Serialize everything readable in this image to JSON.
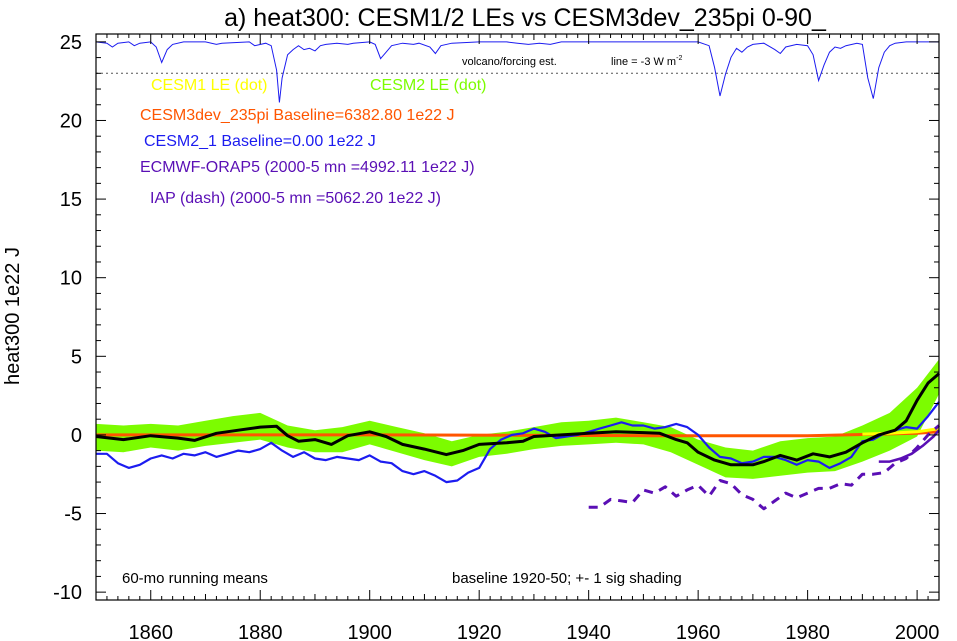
{
  "chart_data": {
    "type": "line",
    "title": "a) heat300: CESM1/2 LEs vs CESM3dev_235pi 0-90_",
    "ylabel": "heat300 1e22 J",
    "xlabel": "",
    "xlim": [
      1850,
      2004
    ],
    "ylim": [
      -10.5,
      25.5
    ],
    "x_ticks": [
      1860,
      1880,
      1900,
      1920,
      1940,
      1960,
      1980,
      2000
    ],
    "y_ticks": [
      -10,
      -5,
      0,
      5,
      10,
      15,
      20,
      25
    ],
    "grid": false,
    "legend_position": "top-left, inside",
    "legend": [
      {
        "text": "CESM1 LE (dot)",
        "color": "#ffff00"
      },
      {
        "text": "CESM2 LE (dot)",
        "color": "#7cfc00"
      },
      {
        "text": "CESM3dev_235pi Baseline=6382.80 1e22 J",
        "color": "#ff5500"
      },
      {
        "text": "CESM2_1 Baseline=0.00 1e22 J",
        "color": "#1c1cf0"
      },
      {
        "text": "ECMWF-ORAP5 (2000-5 mn =4992.11 1e22 J)",
        "color": "#5a0fb5"
      },
      {
        "text": "IAP (dash) (2000-5 mn =5062.20 1e22 J)",
        "color": "#5a0fb5"
      }
    ],
    "volcano_label": "volcano/forcing est.",
    "volcano_line_label": "line = -3 W m",
    "volcano_line_sup": "-2",
    "note_left": "60-mo running means",
    "note_right": "baseline 1920-50; +- 1 sig shading",
    "colors": {
      "cesm1": "#ffff00",
      "shading": "#7cfc00",
      "cesm3dev": "#ff5500",
      "cesm2_1": "#1c1cf0",
      "obs": "#5a0fb5",
      "ensemble_mean": "#000000",
      "volcano": "#1c1cf0"
    },
    "series": [
      {
        "key": "ensemble_mean",
        "values": [
          [
            1850,
            -0.1
          ],
          [
            1855,
            -0.3
          ],
          [
            1860,
            -0.05
          ],
          [
            1865,
            -0.2
          ],
          [
            1868,
            -0.35
          ],
          [
            1872,
            0.1
          ],
          [
            1876,
            0.3
          ],
          [
            1880,
            0.5
          ],
          [
            1883,
            0.55
          ],
          [
            1885,
            -0.05
          ],
          [
            1887,
            -0.4
          ],
          [
            1890,
            -0.3
          ],
          [
            1893,
            -0.6
          ],
          [
            1896,
            -0.05
          ],
          [
            1900,
            0.2
          ],
          [
            1903,
            -0.1
          ],
          [
            1906,
            -0.6
          ],
          [
            1910,
            -0.9
          ],
          [
            1914,
            -1.25
          ],
          [
            1917,
            -1.0
          ],
          [
            1920,
            -0.6
          ],
          [
            1925,
            -0.5
          ],
          [
            1928,
            -0.4
          ],
          [
            1930,
            -0.1
          ],
          [
            1935,
            0.0
          ],
          [
            1940,
            0.1
          ],
          [
            1945,
            0.2
          ],
          [
            1950,
            0.15
          ],
          [
            1953,
            0.1
          ],
          [
            1956,
            -0.3
          ],
          [
            1958,
            -0.5
          ],
          [
            1960,
            -1.1
          ],
          [
            1963,
            -1.6
          ],
          [
            1966,
            -1.9
          ],
          [
            1970,
            -1.9
          ],
          [
            1972,
            -1.7
          ],
          [
            1975,
            -1.3
          ],
          [
            1978,
            -1.6
          ],
          [
            1981,
            -1.2
          ],
          [
            1984,
            -1.4
          ],
          [
            1987,
            -1.1
          ],
          [
            1990,
            -0.5
          ],
          [
            1993,
            0.0
          ],
          [
            1996,
            0.3
          ],
          [
            1998,
            0.9
          ],
          [
            2000,
            2.2
          ],
          [
            2002,
            3.3
          ],
          [
            2004,
            3.9
          ]
        ]
      },
      {
        "key": "cesm2_1",
        "values": [
          [
            1850,
            -1.2
          ],
          [
            1852,
            -1.2
          ],
          [
            1854,
            -1.8
          ],
          [
            1856,
            -2.1
          ],
          [
            1858,
            -1.9
          ],
          [
            1860,
            -1.5
          ],
          [
            1862,
            -1.3
          ],
          [
            1864,
            -1.5
          ],
          [
            1866,
            -1.2
          ],
          [
            1868,
            -1.3
          ],
          [
            1870,
            -1.1
          ],
          [
            1872,
            -1.4
          ],
          [
            1874,
            -1.2
          ],
          [
            1876,
            -1.0
          ],
          [
            1878,
            -1.1
          ],
          [
            1880,
            -0.9
          ],
          [
            1882,
            -0.5
          ],
          [
            1884,
            -1.0
          ],
          [
            1886,
            -1.4
          ],
          [
            1888,
            -1.1
          ],
          [
            1890,
            -1.5
          ],
          [
            1892,
            -1.6
          ],
          [
            1894,
            -1.4
          ],
          [
            1896,
            -1.5
          ],
          [
            1898,
            -1.6
          ],
          [
            1900,
            -1.3
          ],
          [
            1902,
            -1.7
          ],
          [
            1904,
            -1.8
          ],
          [
            1906,
            -2.3
          ],
          [
            1908,
            -2.5
          ],
          [
            1910,
            -2.3
          ],
          [
            1912,
            -2.6
          ],
          [
            1914,
            -3.0
          ],
          [
            1916,
            -2.9
          ],
          [
            1918,
            -2.4
          ],
          [
            1920,
            -2.1
          ],
          [
            1922,
            -0.9
          ],
          [
            1924,
            -0.3
          ],
          [
            1926,
            0.0
          ],
          [
            1928,
            0.1
          ],
          [
            1930,
            0.4
          ],
          [
            1932,
            0.2
          ],
          [
            1934,
            -0.2
          ],
          [
            1936,
            -0.1
          ],
          [
            1938,
            0.0
          ],
          [
            1940,
            0.2
          ],
          [
            1942,
            0.4
          ],
          [
            1944,
            0.6
          ],
          [
            1946,
            0.8
          ],
          [
            1948,
            0.6
          ],
          [
            1950,
            0.6
          ],
          [
            1952,
            0.4
          ],
          [
            1954,
            0.5
          ],
          [
            1956,
            0.7
          ],
          [
            1958,
            0.5
          ],
          [
            1960,
            0.0
          ],
          [
            1962,
            -0.8
          ],
          [
            1964,
            -1.4
          ],
          [
            1966,
            -1.5
          ],
          [
            1968,
            -1.8
          ],
          [
            1970,
            -1.7
          ],
          [
            1972,
            -1.4
          ],
          [
            1974,
            -1.4
          ],
          [
            1976,
            -1.6
          ],
          [
            1978,
            -1.9
          ],
          [
            1980,
            -1.6
          ],
          [
            1982,
            -1.7
          ],
          [
            1984,
            -2.1
          ],
          [
            1986,
            -1.8
          ],
          [
            1988,
            -1.4
          ],
          [
            1990,
            -0.4
          ],
          [
            1992,
            -0.3
          ],
          [
            1994,
            0.1
          ],
          [
            1996,
            0.3
          ],
          [
            1998,
            0.5
          ],
          [
            2000,
            0.4
          ],
          [
            2002,
            1.2
          ],
          [
            2004,
            2.1
          ]
        ]
      },
      {
        "key": "cesm3dev",
        "values": [
          [
            1850,
            0.0
          ],
          [
            1900,
            0.0
          ],
          [
            1950,
            -0.05
          ],
          [
            1980,
            -0.05
          ],
          [
            2000,
            0.1
          ],
          [
            2004,
            0.2
          ]
        ]
      },
      {
        "key": "cesm1",
        "values": [
          [
            1990,
            0.05
          ],
          [
            1995,
            0.1
          ],
          [
            2000,
            0.2
          ],
          [
            2004,
            0.4
          ]
        ]
      },
      {
        "key": "iap",
        "style": "dash",
        "values": [
          [
            1940,
            -4.6
          ],
          [
            1942,
            -4.6
          ],
          [
            1944,
            -4.1
          ],
          [
            1946,
            -4.2
          ],
          [
            1948,
            -4.3
          ],
          [
            1950,
            -3.5
          ],
          [
            1952,
            -3.7
          ],
          [
            1954,
            -3.3
          ],
          [
            1956,
            -3.9
          ],
          [
            1958,
            -3.5
          ],
          [
            1960,
            -3.2
          ],
          [
            1962,
            -3.9
          ],
          [
            1964,
            -2.9
          ],
          [
            1966,
            -3.1
          ],
          [
            1968,
            -3.8
          ],
          [
            1970,
            -4.1
          ],
          [
            1972,
            -4.7
          ],
          [
            1974,
            -4.2
          ],
          [
            1976,
            -3.7
          ],
          [
            1978,
            -4.0
          ],
          [
            1980,
            -3.7
          ],
          [
            1982,
            -3.4
          ],
          [
            1984,
            -3.4
          ],
          [
            1986,
            -3.1
          ],
          [
            1988,
            -3.2
          ],
          [
            1990,
            -2.5
          ],
          [
            1992,
            -2.5
          ],
          [
            1994,
            -2.4
          ],
          [
            1996,
            -1.8
          ],
          [
            1998,
            -1.5
          ],
          [
            2000,
            -0.8
          ],
          [
            2002,
            0.0
          ],
          [
            2004,
            0.6
          ]
        ]
      },
      {
        "key": "orap5",
        "values": [
          [
            1993,
            -1.7
          ],
          [
            1995,
            -1.7
          ],
          [
            1997,
            -1.5
          ],
          [
            1999,
            -1.2
          ],
          [
            2001,
            -0.7
          ],
          [
            2003,
            -0.1
          ],
          [
            2004,
            0.3
          ]
        ]
      }
    ],
    "shading_band": {
      "x": [
        1850,
        1855,
        1860,
        1865,
        1870,
        1875,
        1880,
        1885,
        1890,
        1895,
        1900,
        1905,
        1910,
        1915,
        1920,
        1925,
        1930,
        1935,
        1940,
        1945,
        1950,
        1955,
        1960,
        1965,
        1970,
        1975,
        1980,
        1985,
        1990,
        1995,
        2000,
        2004
      ],
      "lower": [
        -1.0,
        -1.1,
        -0.8,
        -1.0,
        -0.7,
        -0.5,
        -0.3,
        -0.8,
        -1.1,
        -1.1,
        -0.6,
        -1.1,
        -1.6,
        -2.0,
        -1.4,
        -1.2,
        -0.9,
        -0.7,
        -0.6,
        -0.5,
        -0.6,
        -1.1,
        -1.9,
        -2.7,
        -2.8,
        -2.6,
        -2.4,
        -2.3,
        -1.7,
        -1.0,
        -0.1,
        2.6
      ],
      "upper": [
        0.7,
        0.6,
        0.7,
        0.6,
        0.9,
        1.2,
        1.4,
        0.6,
        0.3,
        0.5,
        0.9,
        0.5,
        0.1,
        -0.4,
        0.0,
        0.2,
        0.5,
        0.8,
        0.9,
        1.1,
        0.8,
        0.5,
        -0.3,
        -0.8,
        -1.0,
        -0.4,
        -0.2,
        -0.1,
        0.6,
        1.4,
        3.0,
        4.8
      ]
    },
    "volcano": {
      "baseline_y": 25.0,
      "scale": 0.82,
      "threshold_y": 23.0,
      "values": [
        [
          1850,
          0
        ],
        [
          1852,
          -0.1
        ],
        [
          1853,
          -0.4
        ],
        [
          1854,
          -0.1
        ],
        [
          1856,
          0
        ],
        [
          1857,
          -0.3
        ],
        [
          1858,
          -0.1
        ],
        [
          1860,
          0
        ],
        [
          1861,
          -0.4
        ],
        [
          1862,
          -1.6
        ],
        [
          1863,
          -0.6
        ],
        [
          1864,
          -0.2
        ],
        [
          1866,
          0
        ],
        [
          1870,
          0
        ],
        [
          1872,
          -0.2
        ],
        [
          1873,
          -0.1
        ],
        [
          1878,
          0
        ],
        [
          1879,
          -0.3
        ],
        [
          1881,
          -0.1
        ],
        [
          1882,
          -0.3
        ],
        [
          1883,
          -2.2
        ],
        [
          1883.5,
          -4.7
        ],
        [
          1884,
          -2.8
        ],
        [
          1885,
          -1.0
        ],
        [
          1886,
          -0.6
        ],
        [
          1887,
          -0.3
        ],
        [
          1888,
          -0.6
        ],
        [
          1889,
          -0.5
        ],
        [
          1890,
          -0.7
        ],
        [
          1891,
          -0.3
        ],
        [
          1892,
          -0.2
        ],
        [
          1894,
          -0.1
        ],
        [
          1896,
          -0.2
        ],
        [
          1897,
          -0.1
        ],
        [
          1900,
          0
        ],
        [
          1901,
          -0.2
        ],
        [
          1902,
          -1.3
        ],
        [
          1903,
          -0.8
        ],
        [
          1904,
          -0.3
        ],
        [
          1906,
          -0.1
        ],
        [
          1908,
          -0.2
        ],
        [
          1909,
          -0.1
        ],
        [
          1911,
          -0.4
        ],
        [
          1912,
          -0.9
        ],
        [
          1913,
          -0.3
        ],
        [
          1915,
          -0.1
        ],
        [
          1920,
          0
        ],
        [
          1925,
          0
        ],
        [
          1927,
          -0.1
        ],
        [
          1929,
          -0.2
        ],
        [
          1931,
          -0.1
        ],
        [
          1933,
          -0.2
        ],
        [
          1935,
          0
        ],
        [
          1940,
          0
        ],
        [
          1947,
          0
        ],
        [
          1950,
          0
        ],
        [
          1955,
          0
        ],
        [
          1960,
          0
        ],
        [
          1962,
          -0.3
        ],
        [
          1963,
          -2.0
        ],
        [
          1964,
          -4.2
        ],
        [
          1965,
          -2.5
        ],
        [
          1966,
          -1.2
        ],
        [
          1967,
          -0.5
        ],
        [
          1968,
          -0.8
        ],
        [
          1969,
          -0.4
        ],
        [
          1970,
          -0.2
        ],
        [
          1972,
          -0.1
        ],
        [
          1974,
          -0.6
        ],
        [
          1975,
          -0.9
        ],
        [
          1976,
          -0.4
        ],
        [
          1978,
          -0.2
        ],
        [
          1980,
          -0.3
        ],
        [
          1981,
          -1.0
        ],
        [
          1982,
          -3.0
        ],
        [
          1983,
          -1.8
        ],
        [
          1984,
          -0.8
        ],
        [
          1985,
          -0.4
        ],
        [
          1986,
          -0.5
        ],
        [
          1987,
          -0.3
        ],
        [
          1989,
          -0.1
        ],
        [
          1990,
          -0.2
        ],
        [
          1991,
          -2.8
        ],
        [
          1992,
          -4.4
        ],
        [
          1993,
          -2.0
        ],
        [
          1994,
          -0.8
        ],
        [
          1995,
          -0.3
        ],
        [
          1996,
          -0.1
        ],
        [
          1998,
          0
        ],
        [
          2004,
          0
        ]
      ]
    }
  }
}
